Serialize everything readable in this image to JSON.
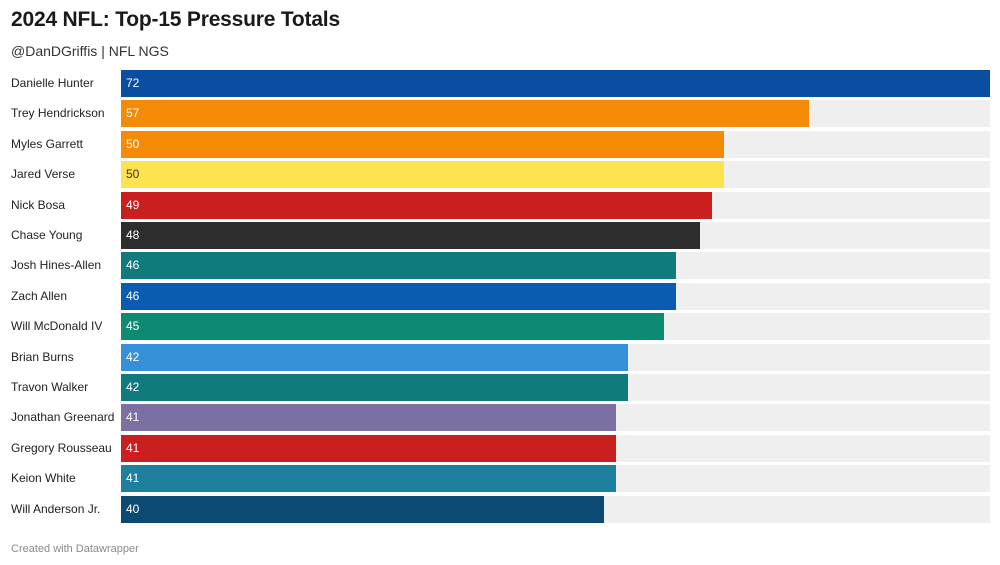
{
  "header": {
    "title": "2024 NFL: Top-15 Pressure Totals",
    "subtitle": "@DanDGriffis | NFL NGS"
  },
  "footer": {
    "text": "Created with Datawrapper"
  },
  "chart_data": {
    "type": "bar",
    "orientation": "horizontal",
    "title": "2024 NFL: Top-15 Pressure Totals",
    "subtitle": "@DanDGriffis | NFL NGS",
    "xlim": [
      0,
      72
    ],
    "grid": false,
    "categories": [
      "Danielle Hunter",
      "Trey Hendrickson",
      "Myles Garrett",
      "Jared Verse",
      "Nick Bosa",
      "Chase Young",
      "Josh Hines-Allen",
      "Zach Allen",
      "Will McDonald IV",
      "Brian Burns",
      "Travon Walker",
      "Jonathan Greenard",
      "Gregory Rousseau",
      "Keion White",
      "Will Anderson Jr."
    ],
    "values": [
      72,
      57,
      50,
      50,
      49,
      48,
      46,
      46,
      45,
      42,
      42,
      41,
      41,
      41,
      40
    ],
    "bar_colors": [
      "#0a4ea2",
      "#f58a07",
      "#f58a07",
      "#fde34f",
      "#c9201f",
      "#2d2d2d",
      "#117a7c",
      "#0a5cb0",
      "#0d8b72",
      "#3590d8",
      "#117a7c",
      "#7b6fa4",
      "#c9201f",
      "#1f7f9f",
      "#0d4a73"
    ],
    "label_colors": [
      "#ffffff",
      "#ffffff",
      "#ffffff",
      "#333333",
      "#ffffff",
      "#ffffff",
      "#ffffff",
      "#ffffff",
      "#ffffff",
      "#ffffff",
      "#ffffff",
      "#ffffff",
      "#ffffff",
      "#ffffff",
      "#ffffff"
    ]
  }
}
